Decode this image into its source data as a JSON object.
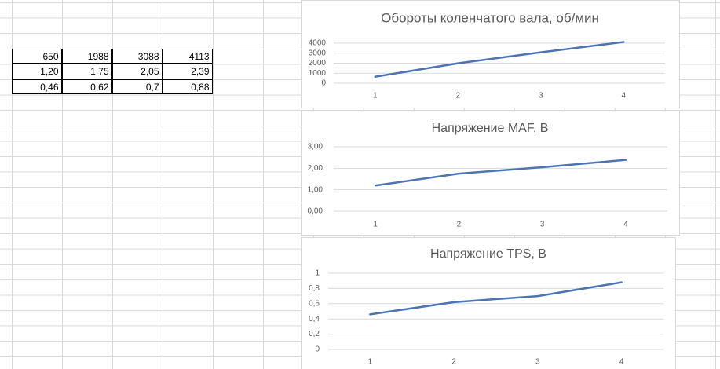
{
  "table": {
    "rows": [
      [
        "650",
        "1988",
        "3088",
        "4113"
      ],
      [
        "1,20",
        "1,75",
        "2,05",
        "2,39"
      ],
      [
        "0,46",
        "0,62",
        "0,7",
        "0,88"
      ]
    ]
  },
  "chart_data": [
    {
      "type": "line",
      "title": "Обороты коленчатого вала, об/мин",
      "categories": [
        "1",
        "2",
        "3",
        "4"
      ],
      "values": [
        650,
        1988,
        3088,
        4113
      ],
      "color": "#4a74b4",
      "ylim": [
        0,
        4500
      ],
      "yticks": [
        0,
        1000,
        2000,
        3000,
        4000
      ],
      "grid": true
    },
    {
      "type": "line",
      "title": "Напряжение MAF, В",
      "categories": [
        "1",
        "2",
        "3",
        "4"
      ],
      "values": [
        1.2,
        1.75,
        2.05,
        2.39
      ],
      "color": "#4a74b4",
      "ylim": [
        0,
        3
      ],
      "yticks": [
        {
          "value": 0,
          "label": "0,00"
        },
        {
          "value": 1,
          "label": "1,00"
        },
        {
          "value": 2,
          "label": "2,00"
        },
        {
          "value": 3,
          "label": "3,00"
        }
      ],
      "grid": true
    },
    {
      "type": "line",
      "title": "Напряжение TPS, В",
      "categories": [
        "1",
        "2",
        "3",
        "4"
      ],
      "values": [
        0.46,
        0.62,
        0.7,
        0.88
      ],
      "color": "#4a74b4",
      "ylim": [
        0,
        1
      ],
      "yticks": [
        0,
        {
          "value": 0.2,
          "label": "0,2"
        },
        {
          "value": 0.4,
          "label": "0,4"
        },
        {
          "value": 0.6,
          "label": "0,6"
        },
        {
          "value": 0.8,
          "label": "0,8"
        },
        1
      ],
      "grid": true
    }
  ]
}
